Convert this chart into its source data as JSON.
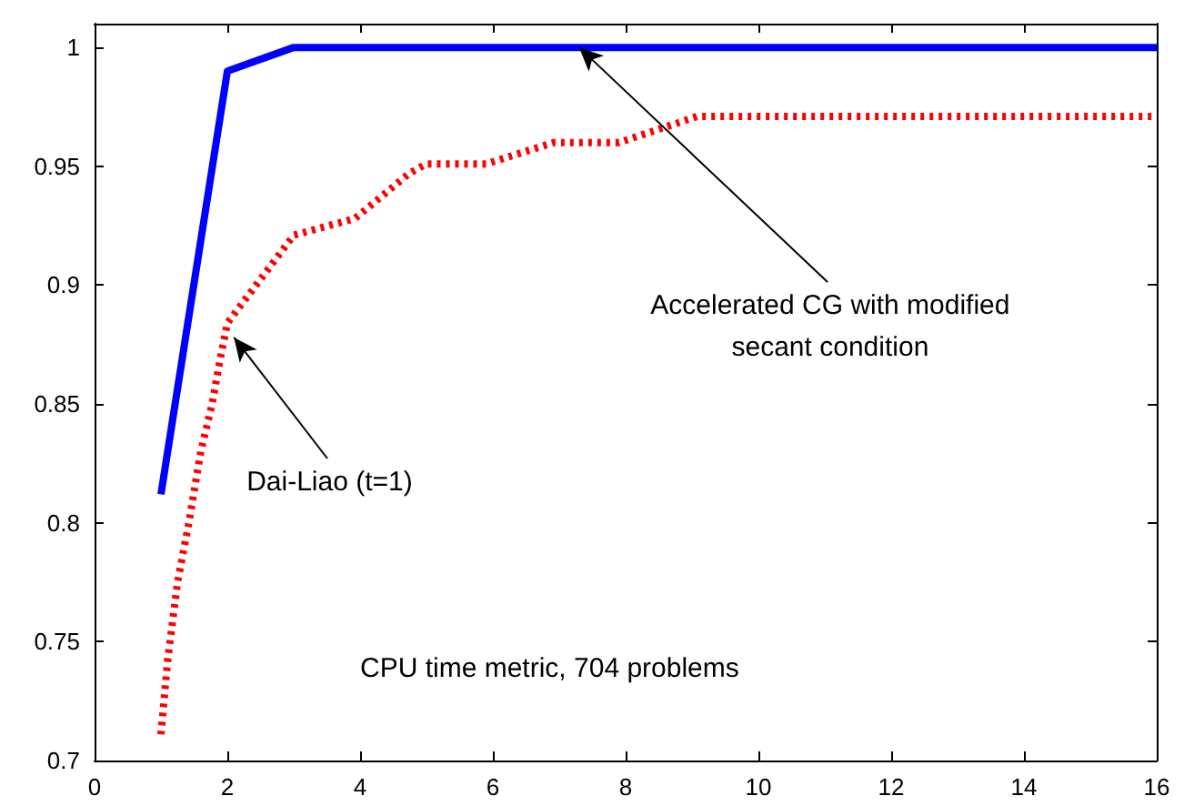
{
  "chart_data": {
    "type": "line",
    "series": [
      {
        "color": "#0000ff",
        "line_style": "solid",
        "x": [
          1,
          2,
          3,
          16
        ],
        "values": [
          0.812,
          0.99,
          1.0,
          1.0
        ]
      },
      {
        "color": "#ff0000",
        "line_style": "dotted",
        "x": [
          1,
          1.1,
          1.25,
          1.42,
          1.6,
          1.77,
          1.9,
          2,
          3,
          3.92,
          4.74,
          5,
          5.9,
          6.92,
          7.9,
          9.08,
          16
        ],
        "values": [
          0.711,
          0.742,
          0.775,
          0.8,
          0.83,
          0.85,
          0.87,
          0.884,
          0.921,
          0.928,
          0.947,
          0.951,
          0.951,
          0.96,
          0.96,
          0.971,
          0.971
        ]
      }
    ],
    "xlim": [
      0,
      16
    ],
    "xticks": [
      0,
      2,
      4,
      6,
      8,
      10,
      12,
      14,
      16
    ],
    "ylim": [
      0.7,
      1.01
    ],
    "yticks": [
      0.7,
      0.75,
      0.8,
      0.85,
      0.9,
      0.95,
      1
    ],
    "grid": false,
    "marker": "none",
    "annotations": [
      {
        "text": "Accelerated CG with modified\nsecant condition",
        "x": 7.3,
        "y": 1.0
      },
      {
        "text": "Dai-Liao (t=1)",
        "x": 2.1,
        "y": 0.878
      },
      "CPU time metric, 704 problems"
    ]
  }
}
